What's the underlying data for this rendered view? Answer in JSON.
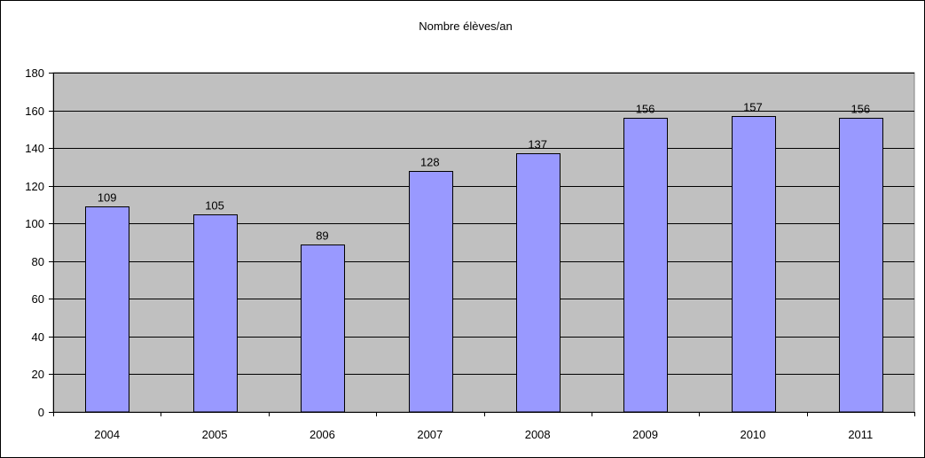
{
  "chart_data": {
    "type": "bar",
    "title": "Nombre élèves/an",
    "xlabel": "",
    "ylabel": "",
    "categories": [
      "2004",
      "2005",
      "2006",
      "2007",
      "2008",
      "2009",
      "2010",
      "2011"
    ],
    "values": [
      109,
      105,
      89,
      128,
      137,
      156,
      157,
      156
    ],
    "ylim": [
      0,
      180
    ],
    "yticks": [
      0,
      20,
      40,
      60,
      80,
      100,
      120,
      140,
      160,
      180
    ],
    "grid": true,
    "legend": "none",
    "data_labels": true
  },
  "colors": {
    "bar_fill": "#9999ff",
    "bar_stroke": "#000000",
    "plot_background": "#c0c0c0",
    "page_background": "#ffffff"
  }
}
